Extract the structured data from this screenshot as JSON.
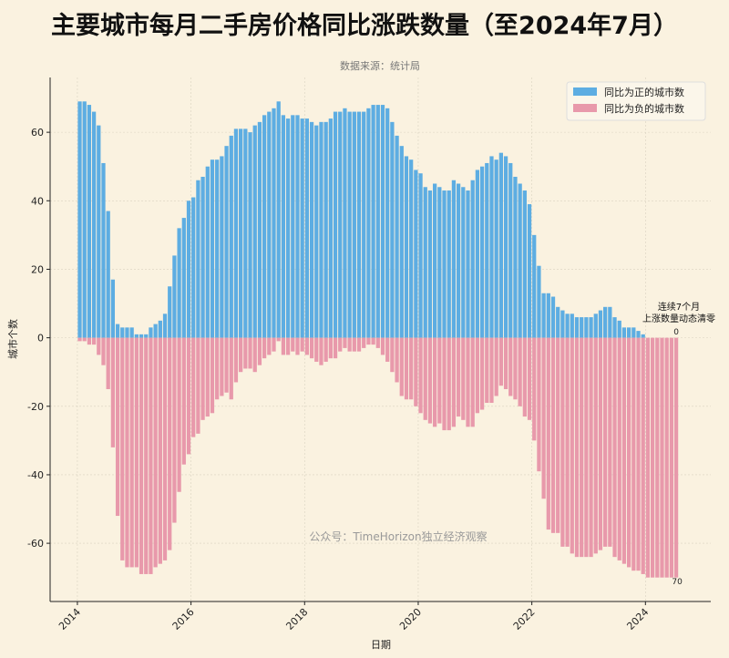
{
  "chart_data": {
    "type": "bar",
    "title": "主要城市每月二手房价格同比涨跌数量（至2024年7月）",
    "subtitle": "数据来源：统计局",
    "xlabel": "日期",
    "ylabel": "城市个数",
    "x_start": "2014-01",
    "x_end": "2024-07",
    "frequency": "monthly",
    "xticks": [
      "2014",
      "2016",
      "2018",
      "2020",
      "2022",
      "2024"
    ],
    "yticks": [
      -60,
      -40,
      -20,
      0,
      20,
      40,
      60
    ],
    "ylim": [
      -77,
      76
    ],
    "xlim": [
      2013.52,
      2025.15
    ],
    "grid": true,
    "legend_position": "top-right",
    "series": [
      {
        "name": "同比为正的城市数",
        "color": "#5dade2",
        "values": [
          69,
          69,
          68,
          66,
          62,
          51,
          37,
          17,
          4,
          3,
          3,
          3,
          1,
          1,
          1,
          3,
          4,
          5,
          7,
          15,
          24,
          32,
          35,
          40,
          41,
          46,
          47,
          50,
          52,
          52,
          53,
          56,
          59,
          61,
          61,
          61,
          60,
          62,
          63,
          65,
          66,
          67,
          69,
          65,
          64,
          65,
          65,
          64,
          64,
          63,
          62,
          63,
          63,
          64,
          66,
          66,
          67,
          66,
          66,
          66,
          66,
          67,
          68,
          68,
          68,
          67,
          63,
          59,
          56,
          53,
          52,
          49,
          48,
          44,
          43,
          45,
          44,
          43,
          43,
          46,
          45,
          44,
          43,
          46,
          49,
          50,
          51,
          53,
          52,
          54,
          53,
          51,
          47,
          45,
          43,
          39,
          30,
          21,
          13,
          13,
          12,
          9,
          8,
          7,
          7,
          6,
          6,
          6,
          6,
          7,
          8,
          9,
          9,
          6,
          5,
          3,
          3,
          3,
          2,
          1,
          0,
          0,
          0,
          0,
          0,
          0,
          0
        ]
      },
      {
        "name": "同比为负的城市数",
        "color": "#e899ab",
        "values": [
          -1,
          -1,
          -2,
          -2,
          -5,
          -8,
          -15,
          -32,
          -52,
          -65,
          -67,
          -67,
          -67,
          -69,
          -69,
          -69,
          -67,
          -66,
          -65,
          -62,
          -54,
          -45,
          -37,
          -34,
          -29,
          -28,
          -24,
          -23,
          -22,
          -18,
          -17,
          -16,
          -18,
          -13,
          -10,
          -9,
          -9,
          -10,
          -8,
          -6,
          -5,
          -4,
          -1,
          -5,
          -5,
          -4,
          -5,
          -4,
          -5,
          -6,
          -7,
          -8,
          -7,
          -6,
          -6,
          -4,
          -3,
          -4,
          -4,
          -4,
          -3,
          -2,
          -2,
          -3,
          -5,
          -7,
          -10,
          -13,
          -17,
          -18,
          -18,
          -20,
          -22,
          -24,
          -25,
          -26,
          -25,
          -27,
          -27,
          -26,
          -23,
          -24,
          -26,
          -26,
          -22,
          -21,
          -19,
          -19,
          -17,
          -14,
          -15,
          -17,
          -18,
          -20,
          -23,
          -24,
          -30,
          -39,
          -47,
          -56,
          -57,
          -57,
          -61,
          -61,
          -63,
          -64,
          -64,
          -64,
          -64,
          -63,
          -62,
          -61,
          -61,
          -64,
          -65,
          -66,
          -67,
          -68,
          -68,
          -69,
          -70,
          -70,
          -70,
          -70,
          -70,
          -70,
          -70
        ]
      }
    ],
    "annotations": {
      "note_line1": "连续7个月",
      "note_line2": "上涨数量动态清零",
      "last_positive_label": "0",
      "last_negative_label": "70"
    },
    "watermark": "公众号：TimeHorizon独立经济观察"
  }
}
